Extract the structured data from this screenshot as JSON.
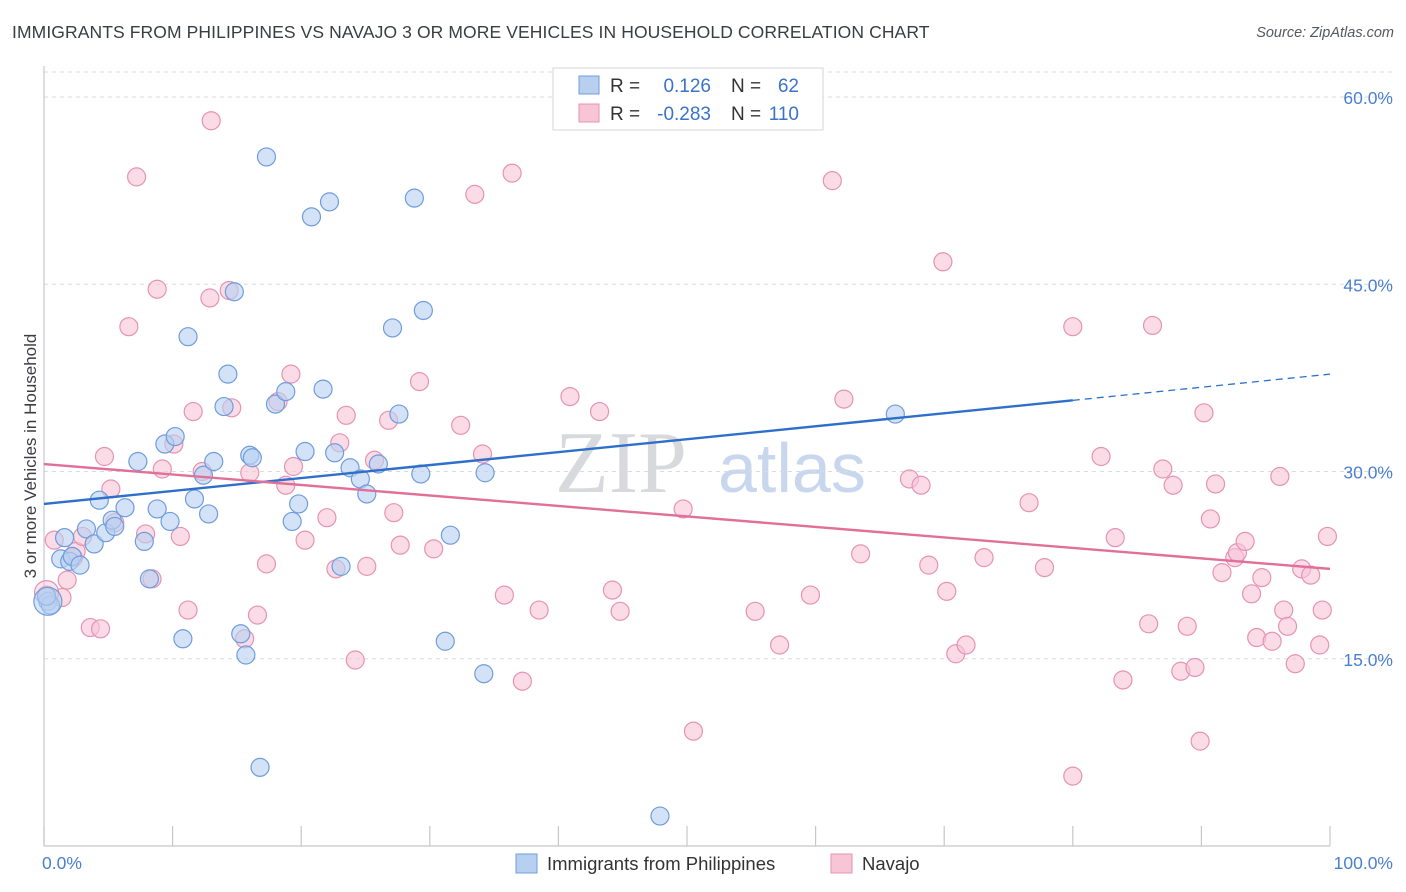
{
  "header": {
    "title": "IMMIGRANTS FROM PHILIPPINES VS NAVAJO 3 OR MORE VEHICLES IN HOUSEHOLD CORRELATION CHART",
    "source": "Source: ZipAtlas.com"
  },
  "watermark": {
    "zip": "ZIP",
    "atlas": "atlas"
  },
  "legend": {
    "r_label": "R =",
    "n_label": "N =",
    "rows": [
      {
        "r": "0.126",
        "n": "62"
      },
      {
        "r": "-0.283",
        "n": "110"
      }
    ]
  },
  "chart_data": {
    "type": "scatter",
    "xlabel": "",
    "ylabel": "3 or more Vehicles in Household",
    "xlim": [
      0,
      100
    ],
    "ylim": [
      0,
      62
    ],
    "x_tick_labels": [
      "0.0%",
      "100.0%"
    ],
    "y_ticks": [
      15,
      30,
      45,
      60
    ],
    "y_tick_labels": [
      "15.0%",
      "30.0%",
      "45.0%",
      "60.0%"
    ],
    "grid": "horizontal dashed",
    "legend_position": "top-center",
    "colors": {
      "philippines_fill": "#b8d0f0",
      "philippines_stroke": "#6f9ddc",
      "philippines_line": "#2e6fca",
      "navajo_fill": "#f7c5d6",
      "navajo_stroke": "#e693b3",
      "navajo_line": "#e07098"
    },
    "series": [
      {
        "name": "Immigrants from Philippines",
        "trend": {
          "x0": 0,
          "y0": 27.4,
          "x1": 80,
          "y1": 35.7,
          "dash_to": 100,
          "dash_y": 37.8
        },
        "points": [
          [
            0.3,
            19.6
          ],
          [
            0.5,
            19.3
          ],
          [
            1.3,
            23.0
          ],
          [
            1.6,
            24.7
          ],
          [
            2.0,
            22.8
          ],
          [
            2.2,
            23.2
          ],
          [
            2.8,
            22.5
          ],
          [
            3.3,
            25.4
          ],
          [
            3.9,
            24.2
          ],
          [
            4.3,
            27.7
          ],
          [
            4.8,
            25.1
          ],
          [
            5.3,
            26.1
          ],
          [
            5.5,
            25.6
          ],
          [
            6.3,
            27.1
          ],
          [
            7.3,
            30.8
          ],
          [
            7.8,
            24.4
          ],
          [
            8.2,
            21.4
          ],
          [
            8.8,
            27.0
          ],
          [
            9.4,
            32.2
          ],
          [
            9.8,
            26.0
          ],
          [
            10.2,
            32.8
          ],
          [
            10.8,
            16.6
          ],
          [
            11.2,
            40.8
          ],
          [
            11.7,
            27.8
          ],
          [
            12.4,
            29.7
          ],
          [
            12.8,
            26.6
          ],
          [
            13.2,
            30.8
          ],
          [
            14.0,
            35.2
          ],
          [
            14.3,
            37.8
          ],
          [
            14.8,
            44.4
          ],
          [
            15.3,
            17.0
          ],
          [
            15.7,
            15.3
          ],
          [
            16.0,
            31.3
          ],
          [
            16.2,
            31.1
          ],
          [
            16.8,
            6.3
          ],
          [
            17.3,
            55.2
          ],
          [
            18.0,
            35.4
          ],
          [
            18.8,
            36.4
          ],
          [
            19.3,
            26.0
          ],
          [
            19.8,
            27.4
          ],
          [
            20.3,
            31.6
          ],
          [
            20.8,
            50.4
          ],
          [
            21.7,
            36.6
          ],
          [
            22.2,
            51.6
          ],
          [
            22.6,
            31.5
          ],
          [
            23.1,
            22.4
          ],
          [
            23.8,
            30.3
          ],
          [
            24.6,
            29.4
          ],
          [
            25.1,
            28.2
          ],
          [
            26.0,
            30.6
          ],
          [
            27.1,
            41.5
          ],
          [
            27.6,
            34.6
          ],
          [
            28.8,
            51.9
          ],
          [
            29.3,
            29.8
          ],
          [
            29.5,
            42.9
          ],
          [
            31.2,
            16.4
          ],
          [
            31.6,
            24.9
          ],
          [
            34.2,
            13.8
          ],
          [
            34.3,
            29.9
          ],
          [
            47.9,
            2.4
          ],
          [
            66.2,
            34.6
          ],
          [
            0.2,
            20.0
          ]
        ]
      },
      {
        "name": "Navajo",
        "trend": {
          "x0": 0,
          "y0": 30.6,
          "x1": 100,
          "y1": 22.2
        },
        "points": [
          [
            0.2,
            20.1
          ],
          [
            0.8,
            24.5
          ],
          [
            1.4,
            19.9
          ],
          [
            1.8,
            21.3
          ],
          [
            2.3,
            23.1
          ],
          [
            2.5,
            23.6
          ],
          [
            3.0,
            24.8
          ],
          [
            3.6,
            17.5
          ],
          [
            4.4,
            17.4
          ],
          [
            4.7,
            31.2
          ],
          [
            5.2,
            28.6
          ],
          [
            5.5,
            25.9
          ],
          [
            6.6,
            41.6
          ],
          [
            7.2,
            53.6
          ],
          [
            7.9,
            25.0
          ],
          [
            8.4,
            21.4
          ],
          [
            8.8,
            44.6
          ],
          [
            9.2,
            30.2
          ],
          [
            10.1,
            32.2
          ],
          [
            10.6,
            24.8
          ],
          [
            11.2,
            18.9
          ],
          [
            11.6,
            34.8
          ],
          [
            12.3,
            30.0
          ],
          [
            12.9,
            43.9
          ],
          [
            13.0,
            58.1
          ],
          [
            14.4,
            44.5
          ],
          [
            14.6,
            35.1
          ],
          [
            15.6,
            16.6
          ],
          [
            16.0,
            29.9
          ],
          [
            16.6,
            18.5
          ],
          [
            17.3,
            22.6
          ],
          [
            18.2,
            35.6
          ],
          [
            18.8,
            28.9
          ],
          [
            19.2,
            37.8
          ],
          [
            19.4,
            30.4
          ],
          [
            20.3,
            24.5
          ],
          [
            22.0,
            26.3
          ],
          [
            22.7,
            22.2
          ],
          [
            23.0,
            32.3
          ],
          [
            23.5,
            34.5
          ],
          [
            24.2,
            14.9
          ],
          [
            25.1,
            22.4
          ],
          [
            25.7,
            30.9
          ],
          [
            26.8,
            34.1
          ],
          [
            27.2,
            26.7
          ],
          [
            27.7,
            24.1
          ],
          [
            29.2,
            37.2
          ],
          [
            30.3,
            23.8
          ],
          [
            32.4,
            33.7
          ],
          [
            33.5,
            52.2
          ],
          [
            34.1,
            31.4
          ],
          [
            35.8,
            20.1
          ],
          [
            36.4,
            53.9
          ],
          [
            37.2,
            13.2
          ],
          [
            38.5,
            18.9
          ],
          [
            40.9,
            36.0
          ],
          [
            43.2,
            34.8
          ],
          [
            44.2,
            20.5
          ],
          [
            44.8,
            18.8
          ],
          [
            49.7,
            27.0
          ],
          [
            50.5,
            9.2
          ],
          [
            55.3,
            18.8
          ],
          [
            57.2,
            16.1
          ],
          [
            59.6,
            20.1
          ],
          [
            61.3,
            53.3
          ],
          [
            62.2,
            35.8
          ],
          [
            63.5,
            23.4
          ],
          [
            67.3,
            29.4
          ],
          [
            68.2,
            28.9
          ],
          [
            68.8,
            22.5
          ],
          [
            69.9,
            46.8
          ],
          [
            70.2,
            20.4
          ],
          [
            70.9,
            15.4
          ],
          [
            71.7,
            16.1
          ],
          [
            73.1,
            23.1
          ],
          [
            76.6,
            27.5
          ],
          [
            77.8,
            22.3
          ],
          [
            80.0,
            41.6
          ],
          [
            80.0,
            5.6
          ],
          [
            82.2,
            31.2
          ],
          [
            83.3,
            24.7
          ],
          [
            83.9,
            13.3
          ],
          [
            85.9,
            17.8
          ],
          [
            86.2,
            41.7
          ],
          [
            87.0,
            30.2
          ],
          [
            87.8,
            28.9
          ],
          [
            88.4,
            14.0
          ],
          [
            88.9,
            17.6
          ],
          [
            89.5,
            14.3
          ],
          [
            89.9,
            8.4
          ],
          [
            90.2,
            34.7
          ],
          [
            90.7,
            26.2
          ],
          [
            91.1,
            29.0
          ],
          [
            91.6,
            21.9
          ],
          [
            92.6,
            23.1
          ],
          [
            92.8,
            23.5
          ],
          [
            93.4,
            24.4
          ],
          [
            93.9,
            20.2
          ],
          [
            94.3,
            16.7
          ],
          [
            94.7,
            21.5
          ],
          [
            95.5,
            16.4
          ],
          [
            96.1,
            29.6
          ],
          [
            96.4,
            18.9
          ],
          [
            96.7,
            17.6
          ],
          [
            97.3,
            14.6
          ],
          [
            97.8,
            22.2
          ],
          [
            98.5,
            21.7
          ],
          [
            99.2,
            16.1
          ],
          [
            99.4,
            18.9
          ],
          [
            99.8,
            24.8
          ]
        ]
      }
    ]
  }
}
